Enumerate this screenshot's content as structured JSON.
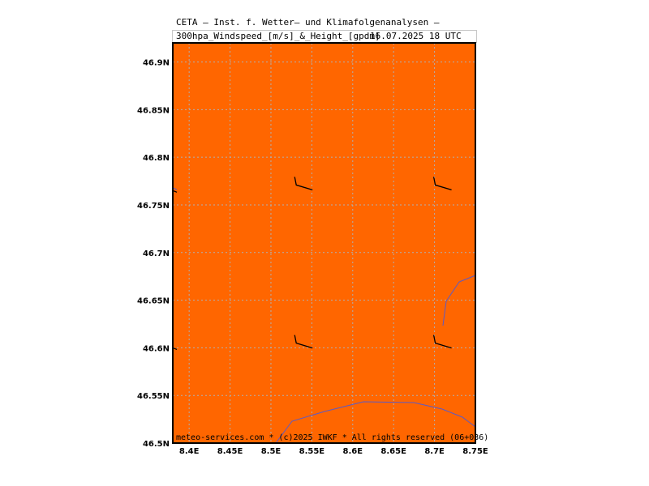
{
  "header": {
    "line1": "CETA — Inst. f. Wetter— und Klimafolgenanalysen —",
    "line2": "300hpa_Windspeed_[m/s]_&_Height_[gpdm]",
    "time": "16.07.2025 18 UTC"
  },
  "map": {
    "background_color": "#ff6600",
    "grid": true,
    "grid_color": "#b0b0b0",
    "lon_ticks": [
      "8.4E",
      "8.45E",
      "8.5E",
      "8.55E",
      "8.6E",
      "8.65E",
      "8.7E",
      "8.75E"
    ],
    "lat_ticks": [
      "46.5N",
      "46.55N",
      "46.6N",
      "46.65N",
      "46.7N",
      "46.75N",
      "46.8N",
      "46.85N",
      "46.9N"
    ],
    "lon_range": [
      8.38,
      8.75
    ],
    "lat_range": [
      46.5,
      46.92
    ],
    "border_color": "#5a5ac8",
    "wind_barbs": [
      {
        "lon": 8.53,
        "lat": 46.77
      },
      {
        "lon": 8.7,
        "lat": 46.77
      },
      {
        "lon": 8.53,
        "lat": 46.604
      },
      {
        "lon": 8.7,
        "lat": 46.604
      }
    ]
  },
  "footer": "meteo-services.com * (c)2025 IWKF * All rights reserved (06+036)"
}
